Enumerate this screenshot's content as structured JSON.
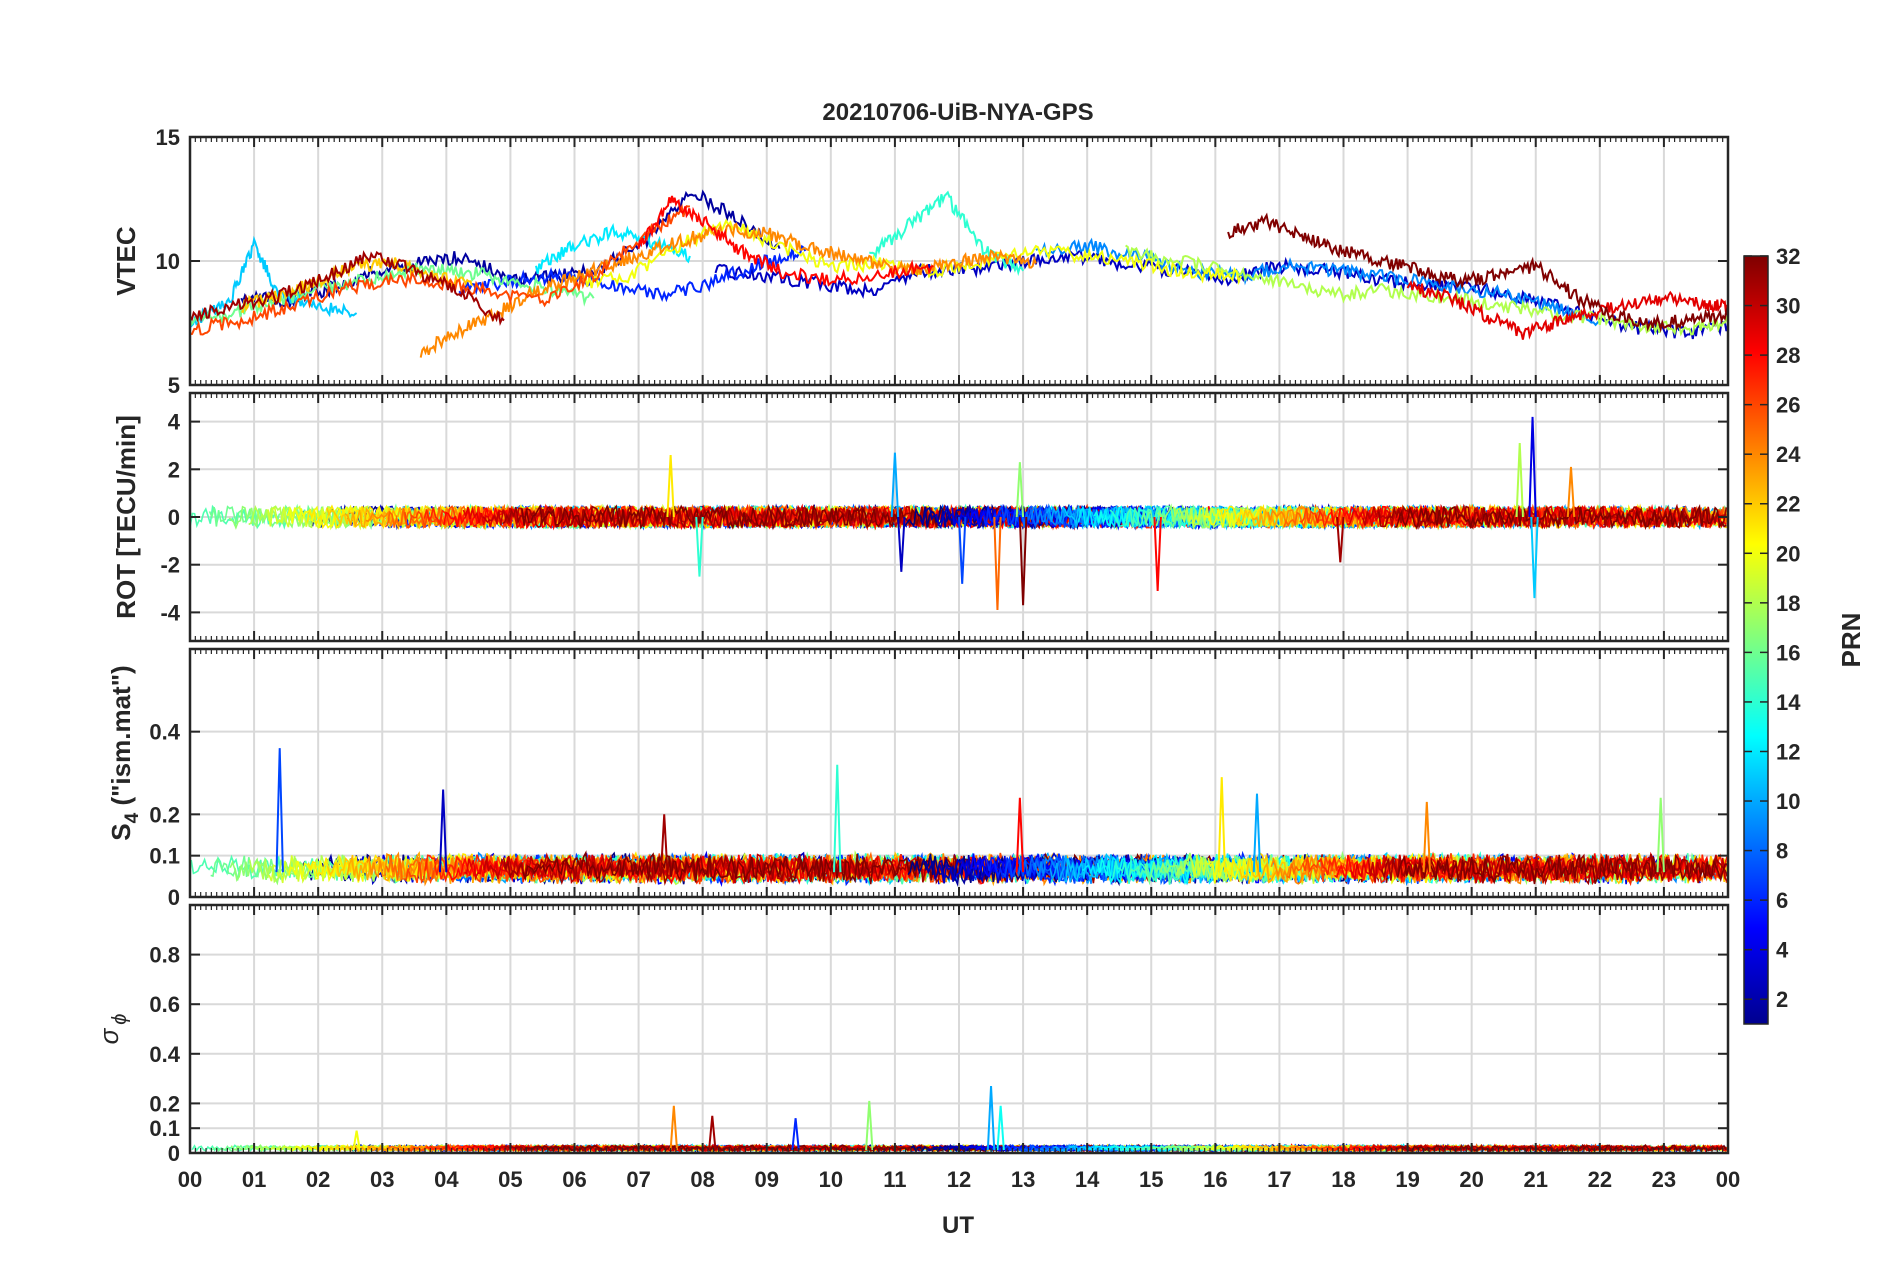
{
  "figure_title": "20210706-UiB-NYA-GPS",
  "chart_data": [
    {
      "type": "line",
      "panel": "VTEC",
      "ylabel": "VTEC",
      "ylim": [
        5,
        15
      ],
      "yticks": [
        5,
        10,
        15
      ],
      "grid": true,
      "series": [
        {
          "prn": 2,
          "x": [
            0.8,
            1.5,
            2.2,
            2.9,
            3.6,
            4.3,
            5.0,
            5.7,
            6.4,
            7.1,
            7.8,
            8.5,
            9.2
          ],
          "y": [
            8.6,
            8.4,
            8.9,
            9.6,
            9.9,
            10.2,
            9.2,
            9.4,
            9.7,
            10.8,
            12.8,
            11.8,
            10.5
          ]
        },
        {
          "prn": 3,
          "x": [
            8.2,
            9.0,
            9.8,
            10.6,
            11.4,
            12.2,
            13.0,
            13.8,
            14.6,
            15.4,
            16.2,
            17.0,
            17.8,
            18.6,
            19.4,
            20.2,
            21.0,
            21.8,
            22.6,
            23.4,
            24.0
          ],
          "y": [
            9.6,
            9.4,
            9.1,
            8.8,
            9.6,
            9.7,
            10.0,
            10.2,
            9.9,
            9.6,
            9.3,
            9.8,
            9.6,
            9.2,
            9.0,
            8.8,
            8.4,
            7.8,
            7.3,
            7.1,
            7.4
          ]
        },
        {
          "prn": 6,
          "x": [
            4.2,
            5.0,
            5.8,
            6.6,
            7.4,
            8.2,
            9.0,
            9.6
          ],
          "y": [
            8.8,
            9.2,
            9.4,
            9.0,
            8.6,
            9.2,
            10.0,
            10.4
          ]
        },
        {
          "prn": 9,
          "x": [
            13.2,
            14.0,
            14.8,
            15.6,
            16.4,
            17.2,
            18.0,
            18.8,
            19.6,
            20.4,
            21.2,
            22.0
          ],
          "y": [
            10.4,
            10.6,
            10.2,
            9.6,
            9.4,
            9.8,
            9.6,
            9.3,
            9.0,
            8.7,
            8.2,
            7.6
          ]
        },
        {
          "prn": 11,
          "x": [
            0.0,
            0.6,
            1.0,
            1.4,
            2.0,
            2.6
          ],
          "y": [
            7.5,
            8.3,
            10.6,
            8.6,
            8.2,
            7.9
          ]
        },
        {
          "prn": 12,
          "x": [
            5.4,
            6.0,
            6.6,
            7.2,
            7.8
          ],
          "y": [
            9.7,
            10.6,
            11.2,
            10.8,
            10.2
          ]
        },
        {
          "prn": 14,
          "x": [
            10.6,
            11.2,
            11.8,
            12.4,
            13.0
          ],
          "y": [
            10.2,
            11.4,
            12.6,
            10.4,
            9.6
          ]
        },
        {
          "prn": 16,
          "x": [
            0.0,
            0.7,
            1.4,
            2.1,
            2.8,
            3.5,
            4.2,
            4.9,
            5.6,
            6.3
          ],
          "y": [
            7.6,
            7.9,
            8.4,
            8.9,
            9.3,
            9.7,
            9.6,
            9.3,
            8.9,
            8.5
          ]
        },
        {
          "prn": 18,
          "x": [
            14.6,
            15.4,
            16.2,
            17.0,
            17.8,
            18.6,
            19.4,
            20.2,
            21.0,
            21.8,
            22.6,
            23.4,
            24.0
          ],
          "y": [
            10.4,
            10.0,
            9.6,
            9.2,
            8.6,
            8.8,
            8.6,
            8.3,
            8.0,
            7.7,
            7.4,
            7.3,
            7.5
          ]
        },
        {
          "prn": 20,
          "x": [
            6.0,
            6.8,
            7.6,
            8.4,
            9.2,
            10.0,
            10.8,
            11.6,
            12.4,
            13.2,
            14.0,
            14.8,
            15.6,
            16.4
          ],
          "y": [
            9.1,
            9.3,
            10.6,
            11.5,
            10.6,
            9.8,
            9.9,
            9.6,
            10.0,
            10.4,
            10.2,
            9.9,
            9.5,
            9.4
          ]
        },
        {
          "prn": 22,
          "x": [
            0.8,
            1.4,
            2.0,
            2.6,
            3.2,
            3.8,
            4.4
          ],
          "y": [
            8.2,
            8.6,
            9.2,
            9.8,
            9.9,
            9.4,
            9.0
          ]
        },
        {
          "prn": 24,
          "x": [
            3.6,
            4.2,
            4.8,
            5.4,
            6.0,
            6.6,
            7.2,
            7.8,
            8.4,
            9.0,
            9.6,
            10.2,
            10.8,
            11.4,
            12.0,
            12.6,
            13.2
          ],
          "y": [
            6.3,
            7.2,
            7.9,
            8.8,
            9.3,
            9.9,
            10.4,
            10.9,
            11.3,
            11.1,
            10.6,
            10.2,
            9.8,
            9.6,
            10.0,
            10.2,
            9.9
          ]
        },
        {
          "prn": 26,
          "x": [
            0.0,
            0.8,
            1.6,
            2.4,
            3.2,
            4.0,
            4.8,
            5.6,
            6.4,
            7.2,
            7.8
          ],
          "y": [
            7.2,
            7.6,
            8.2,
            8.9,
            9.3,
            9.1,
            8.7,
            8.4,
            9.6,
            11.2,
            12.2
          ]
        },
        {
          "prn": 28,
          "x": [
            7.0,
            7.5,
            8.0,
            8.6,
            9.2,
            10.0,
            10.8,
            11.6
          ],
          "y": [
            10.6,
            12.4,
            11.6,
            10.4,
            9.6,
            9.2,
            9.5,
            9.8
          ]
        },
        {
          "prn": 29,
          "x": [
            19.0,
            19.6,
            20.2,
            20.8,
            21.3,
            21.8,
            22.4,
            23.0,
            23.6,
            24.0
          ],
          "y": [
            9.0,
            8.6,
            7.8,
            7.1,
            7.5,
            7.9,
            8.2,
            8.5,
            8.3,
            8.1
          ]
        },
        {
          "prn": 31,
          "x": [
            0.0,
            0.7,
            1.4,
            2.1,
            2.8,
            3.5,
            4.2,
            4.9
          ],
          "y": [
            7.8,
            8.2,
            8.6,
            9.3,
            10.2,
            9.6,
            8.8,
            7.6
          ]
        },
        {
          "prn": 32,
          "x": [
            16.2,
            16.8,
            17.4,
            18.0,
            18.6,
            19.2,
            19.8,
            20.4,
            21.0,
            21.6,
            22.2,
            22.8,
            23.4,
            24.0
          ],
          "y": [
            11.2,
            11.6,
            11.0,
            10.4,
            10.0,
            9.6,
            9.2,
            9.4,
            9.8,
            8.6,
            7.8,
            7.5,
            7.6,
            7.8
          ]
        }
      ]
    },
    {
      "type": "line",
      "panel": "ROT",
      "ylabel": "ROT [TECU/min]",
      "ylim": [
        -5.2,
        5.2
      ],
      "yticks": [
        -4,
        -2,
        0,
        2,
        4
      ],
      "grid": true,
      "notable_peaks": [
        {
          "x": 20.95,
          "y": 4.2
        },
        {
          "x": 20.98,
          "y": -3.4
        },
        {
          "x": 20.75,
          "y": 3.1
        },
        {
          "x": 12.6,
          "y": -3.9
        },
        {
          "x": 13.0,
          "y": -3.7
        },
        {
          "x": 12.05,
          "y": -2.8
        },
        {
          "x": 7.95,
          "y": -2.5
        },
        {
          "x": 7.5,
          "y": 2.6
        },
        {
          "x": 15.1,
          "y": -3.1
        },
        {
          "x": 11.1,
          "y": -2.3
        },
        {
          "x": 11.0,
          "y": 2.7
        },
        {
          "x": 12.95,
          "y": 2.3
        },
        {
          "x": 21.55,
          "y": 2.1
        },
        {
          "x": 17.95,
          "y": -1.9
        }
      ]
    },
    {
      "type": "line",
      "panel": "S4",
      "ylabel": "S4 (\"ism.mat\")",
      "ylim": [
        0,
        0.6
      ],
      "yticks": [
        0,
        0.1,
        0.2,
        0.4
      ],
      "grid": true,
      "notable_peaks": [
        {
          "x": 1.4,
          "y": 0.36
        },
        {
          "x": 10.1,
          "y": 0.32
        },
        {
          "x": 16.1,
          "y": 0.29
        },
        {
          "x": 12.95,
          "y": 0.24
        },
        {
          "x": 3.95,
          "y": 0.26
        },
        {
          "x": 16.65,
          "y": 0.25
        },
        {
          "x": 22.95,
          "y": 0.24
        },
        {
          "x": 19.3,
          "y": 0.23
        },
        {
          "x": 7.4,
          "y": 0.2
        }
      ]
    },
    {
      "type": "line",
      "panel": "sigma_phi",
      "ylabel": "σ ϕ",
      "ylim": [
        0,
        1
      ],
      "yticks": [
        0,
        0.1,
        0.2,
        0.4,
        0.6,
        0.8
      ],
      "grid": true,
      "notable_peaks": [
        {
          "x": 12.5,
          "y": 0.27
        },
        {
          "x": 10.6,
          "y": 0.21
        },
        {
          "x": 7.55,
          "y": 0.19
        },
        {
          "x": 8.15,
          "y": 0.15
        },
        {
          "x": 9.45,
          "y": 0.14
        },
        {
          "x": 12.65,
          "y": 0.19
        },
        {
          "x": 2.6,
          "y": 0.09
        }
      ]
    }
  ],
  "xaxis": {
    "label": "UT",
    "range": [
      0,
      24
    ],
    "tick_labels": [
      "00",
      "01",
      "02",
      "03",
      "04",
      "05",
      "06",
      "07",
      "08",
      "09",
      "10",
      "11",
      "12",
      "13",
      "14",
      "15",
      "16",
      "17",
      "18",
      "19",
      "20",
      "21",
      "22",
      "23",
      "00"
    ]
  },
  "colorbar": {
    "label": "PRN",
    "range": [
      1,
      32
    ],
    "ticks": [
      2,
      4,
      6,
      8,
      10,
      12,
      14,
      16,
      18,
      20,
      22,
      24,
      26,
      28,
      30,
      32
    ],
    "colormap": "jet",
    "colors": {
      "low": "#00008f",
      "mid": "#7fff7f",
      "high": "#7f0000"
    }
  }
}
